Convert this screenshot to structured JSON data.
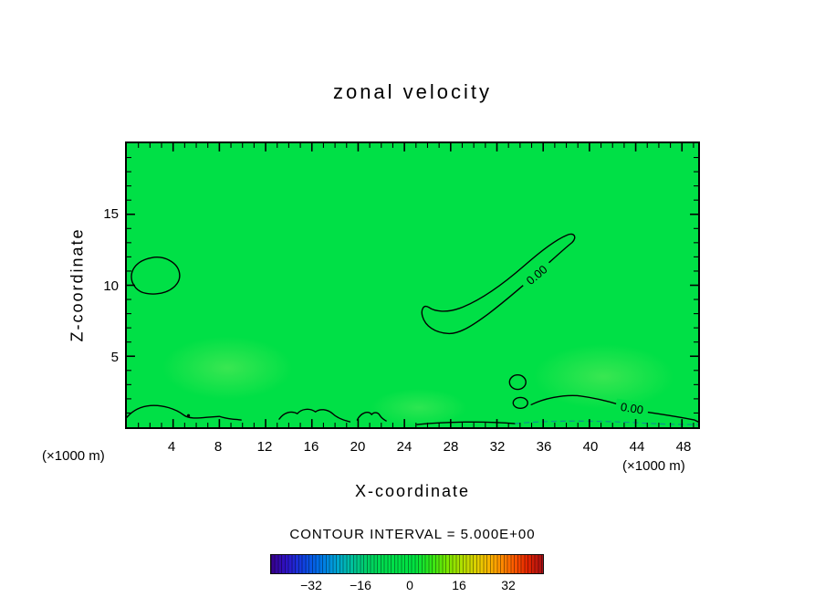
{
  "title": "zonal velocity",
  "x_axis": {
    "label": "X-coordinate",
    "unit_left": "(×1000 m)",
    "unit_right": "(×1000 m)",
    "tick_labels": [
      "4",
      "8",
      "12",
      "16",
      "20",
      "24",
      "28",
      "32",
      "36",
      "40",
      "44",
      "48"
    ]
  },
  "y_axis": {
    "label": "Z-coordinate",
    "tick_labels": [
      "15",
      "10",
      "5"
    ]
  },
  "annotations": {
    "contour_interval": "CONTOUR INTERVAL = 5.000E+00"
  },
  "contour_labels": {
    "upper_zero": "0.00",
    "lower_zero": "0.00"
  },
  "colorbar": {
    "tick_labels": [
      "−32",
      "−16",
      "0",
      "16",
      "32"
    ],
    "colors": [
      "#38008c",
      "#2d14c8",
      "#1040e0",
      "#0070e8",
      "#00a0d8",
      "#00bfa0",
      "#00cf66",
      "#00dc4e",
      "#00e046",
      "#00e240",
      "#30e618",
      "#78e600",
      "#b4de00",
      "#e6cc00",
      "#ffa400",
      "#ff6600",
      "#e62600",
      "#a80f14"
    ]
  },
  "colors": {
    "field_background": "#00e046",
    "contour_line": "#000000",
    "negative_contour_dashed": "#0e8f8f",
    "frame": "#000000",
    "text": "#000000",
    "page_background": "#ffffff"
  },
  "chart_data": {
    "type": "heatmap",
    "title": "zonal velocity",
    "xlabel": "X-coordinate (×1000 m)",
    "ylabel": "Z-coordinate (×1000 m)",
    "xlim": [
      0,
      49.4
    ],
    "ylim": [
      0,
      20
    ],
    "x_major_tick_step": 4,
    "x_minor_tick_step": 1,
    "y_major_tick_step": 5,
    "y_minor_tick_step": 1,
    "x_major_ticks": [
      4,
      8,
      12,
      16,
      20,
      24,
      28,
      32,
      36,
      40,
      44,
      48
    ],
    "y_major_ticks": [
      5,
      10,
      15
    ],
    "grid": false,
    "legend": "none",
    "colorbar_position": "bottom",
    "contour_interval": 5.0,
    "contour_levels_visible": [
      0.0
    ],
    "colorbar_tick_values": [
      -32,
      -16,
      0,
      16,
      32
    ],
    "colorbar_value_range": [
      -45,
      45
    ],
    "field_summary": "Zonal velocity is nearly uniform in the 0 to +5 band (single green fill over the whole section). The 0.00 contour encloses weak negative pockets: a small oval near x≈2.5, z≈10.5; an elongated tilted band rising from (x≈26, z≈8) to (x≈39, z≈13) labeled 0.00; shallow wavy pockets along the surface z≲1.5 for 0≤x≤22 and 25≤x≤50 (second 0.00 label near x≈44, z≈1), with dashed sub-zero contours hugging the surface for x≈23–50."
  }
}
